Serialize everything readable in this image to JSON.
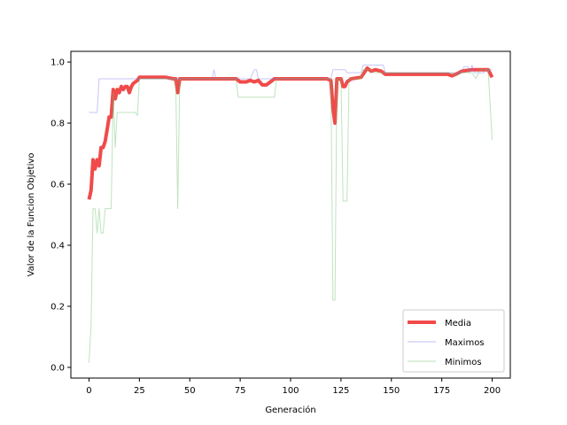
{
  "chart_data": {
    "type": "line",
    "xlabel": "Generación",
    "ylabel": "Valor de la Funcion Objetivo",
    "xlim": [
      -9,
      209
    ],
    "ylim": [
      -0.035,
      1.035
    ],
    "xticks": [
      0,
      25,
      50,
      75,
      100,
      125,
      150,
      175,
      200
    ],
    "yticks": [
      0.0,
      0.2,
      0.4,
      0.6,
      0.8,
      1.0
    ],
    "ytick_labels": [
      "0.0",
      "0.2",
      "0.4",
      "0.6",
      "0.8",
      "1.0"
    ],
    "grid": false,
    "legend_position": "bottom-right",
    "series": [
      {
        "name": "Media",
        "color": "#f04040",
        "points": [
          [
            0,
            0.55
          ],
          [
            1,
            0.58
          ],
          [
            2,
            0.68
          ],
          [
            3,
            0.65
          ],
          [
            4,
            0.68
          ],
          [
            5,
            0.66
          ],
          [
            6,
            0.72
          ],
          [
            7,
            0.72
          ],
          [
            8,
            0.74
          ],
          [
            9,
            0.78
          ],
          [
            10,
            0.82
          ],
          [
            11,
            0.82
          ],
          [
            12,
            0.91
          ],
          [
            13,
            0.88
          ],
          [
            14,
            0.91
          ],
          [
            15,
            0.9
          ],
          [
            16,
            0.92
          ],
          [
            17,
            0.91
          ],
          [
            18,
            0.92
          ],
          [
            19,
            0.92
          ],
          [
            20,
            0.9
          ],
          [
            21,
            0.92
          ],
          [
            22,
            0.93
          ],
          [
            24,
            0.94
          ],
          [
            25,
            0.95
          ],
          [
            30,
            0.95
          ],
          [
            35,
            0.95
          ],
          [
            38,
            0.95
          ],
          [
            42,
            0.945
          ],
          [
            43,
            0.945
          ],
          [
            44,
            0.9
          ],
          [
            45,
            0.945
          ],
          [
            50,
            0.945
          ],
          [
            60,
            0.945
          ],
          [
            70,
            0.945
          ],
          [
            73,
            0.945
          ],
          [
            75,
            0.935
          ],
          [
            78,
            0.935
          ],
          [
            80,
            0.94
          ],
          [
            82,
            0.935
          ],
          [
            84,
            0.94
          ],
          [
            86,
            0.925
          ],
          [
            88,
            0.925
          ],
          [
            90,
            0.935
          ],
          [
            92,
            0.945
          ],
          [
            100,
            0.945
          ],
          [
            110,
            0.945
          ],
          [
            118,
            0.945
          ],
          [
            120,
            0.94
          ],
          [
            121,
            0.85
          ],
          [
            122,
            0.8
          ],
          [
            123,
            0.945
          ],
          [
            125,
            0.945
          ],
          [
            126,
            0.92
          ],
          [
            127,
            0.92
          ],
          [
            128,
            0.935
          ],
          [
            130,
            0.945
          ],
          [
            135,
            0.95
          ],
          [
            137,
            0.97
          ],
          [
            138,
            0.98
          ],
          [
            140,
            0.97
          ],
          [
            142,
            0.975
          ],
          [
            145,
            0.97
          ],
          [
            147,
            0.96
          ],
          [
            150,
            0.96
          ],
          [
            160,
            0.96
          ],
          [
            170,
            0.96
          ],
          [
            178,
            0.96
          ],
          [
            180,
            0.955
          ],
          [
            182,
            0.96
          ],
          [
            185,
            0.97
          ],
          [
            190,
            0.975
          ],
          [
            195,
            0.975
          ],
          [
            198,
            0.975
          ],
          [
            200,
            0.95
          ]
        ]
      },
      {
        "name": "Maximos",
        "color": "#8080ee",
        "points": [
          [
            0,
            0.835
          ],
          [
            4,
            0.835
          ],
          [
            5,
            0.945
          ],
          [
            24,
            0.945
          ],
          [
            25,
            0.945
          ],
          [
            61,
            0.945
          ],
          [
            62,
            0.975
          ],
          [
            63,
            0.945
          ],
          [
            80,
            0.945
          ],
          [
            82,
            0.975
          ],
          [
            83,
            0.975
          ],
          [
            84,
            0.945
          ],
          [
            120,
            0.945
          ],
          [
            121,
            0.975
          ],
          [
            127,
            0.975
          ],
          [
            128,
            0.965
          ],
          [
            135,
            0.965
          ],
          [
            136,
            0.99
          ],
          [
            146,
            0.99
          ],
          [
            147,
            0.965
          ],
          [
            185,
            0.965
          ],
          [
            186,
            0.985
          ],
          [
            188,
            0.985
          ],
          [
            189,
            0.965
          ],
          [
            190,
            0.99
          ],
          [
            191,
            0.965
          ],
          [
            196,
            0.965
          ],
          [
            197,
            0.975
          ],
          [
            200,
            0.975
          ]
        ]
      },
      {
        "name": "Minimos",
        "color": "#70c070",
        "points": [
          [
            0,
            0.015
          ],
          [
            1,
            0.14
          ],
          [
            2,
            0.52
          ],
          [
            3,
            0.52
          ],
          [
            4,
            0.44
          ],
          [
            5,
            0.52
          ],
          [
            6,
            0.44
          ],
          [
            7,
            0.44
          ],
          [
            8,
            0.52
          ],
          [
            9,
            0.52
          ],
          [
            10,
            0.52
          ],
          [
            11,
            0.52
          ],
          [
            12,
            0.9
          ],
          [
            13,
            0.72
          ],
          [
            14,
            0.835
          ],
          [
            23,
            0.835
          ],
          [
            24,
            0.825
          ],
          [
            25,
            0.945
          ],
          [
            43,
            0.945
          ],
          [
            44,
            0.52
          ],
          [
            45,
            0.945
          ],
          [
            73,
            0.945
          ],
          [
            74,
            0.885
          ],
          [
            92,
            0.885
          ],
          [
            93,
            0.945
          ],
          [
            120,
            0.945
          ],
          [
            121,
            0.22
          ],
          [
            122,
            0.22
          ],
          [
            123,
            0.945
          ],
          [
            125,
            0.945
          ],
          [
            126,
            0.545
          ],
          [
            128,
            0.545
          ],
          [
            129,
            0.945
          ],
          [
            135,
            0.945
          ],
          [
            136,
            0.975
          ],
          [
            140,
            0.975
          ],
          [
            141,
            0.965
          ],
          [
            180,
            0.965
          ],
          [
            182,
            0.955
          ],
          [
            185,
            0.965
          ],
          [
            190,
            0.965
          ],
          [
            192,
            0.945
          ],
          [
            194,
            0.975
          ],
          [
            198,
            0.975
          ],
          [
            200,
            0.745
          ]
        ]
      }
    ]
  }
}
